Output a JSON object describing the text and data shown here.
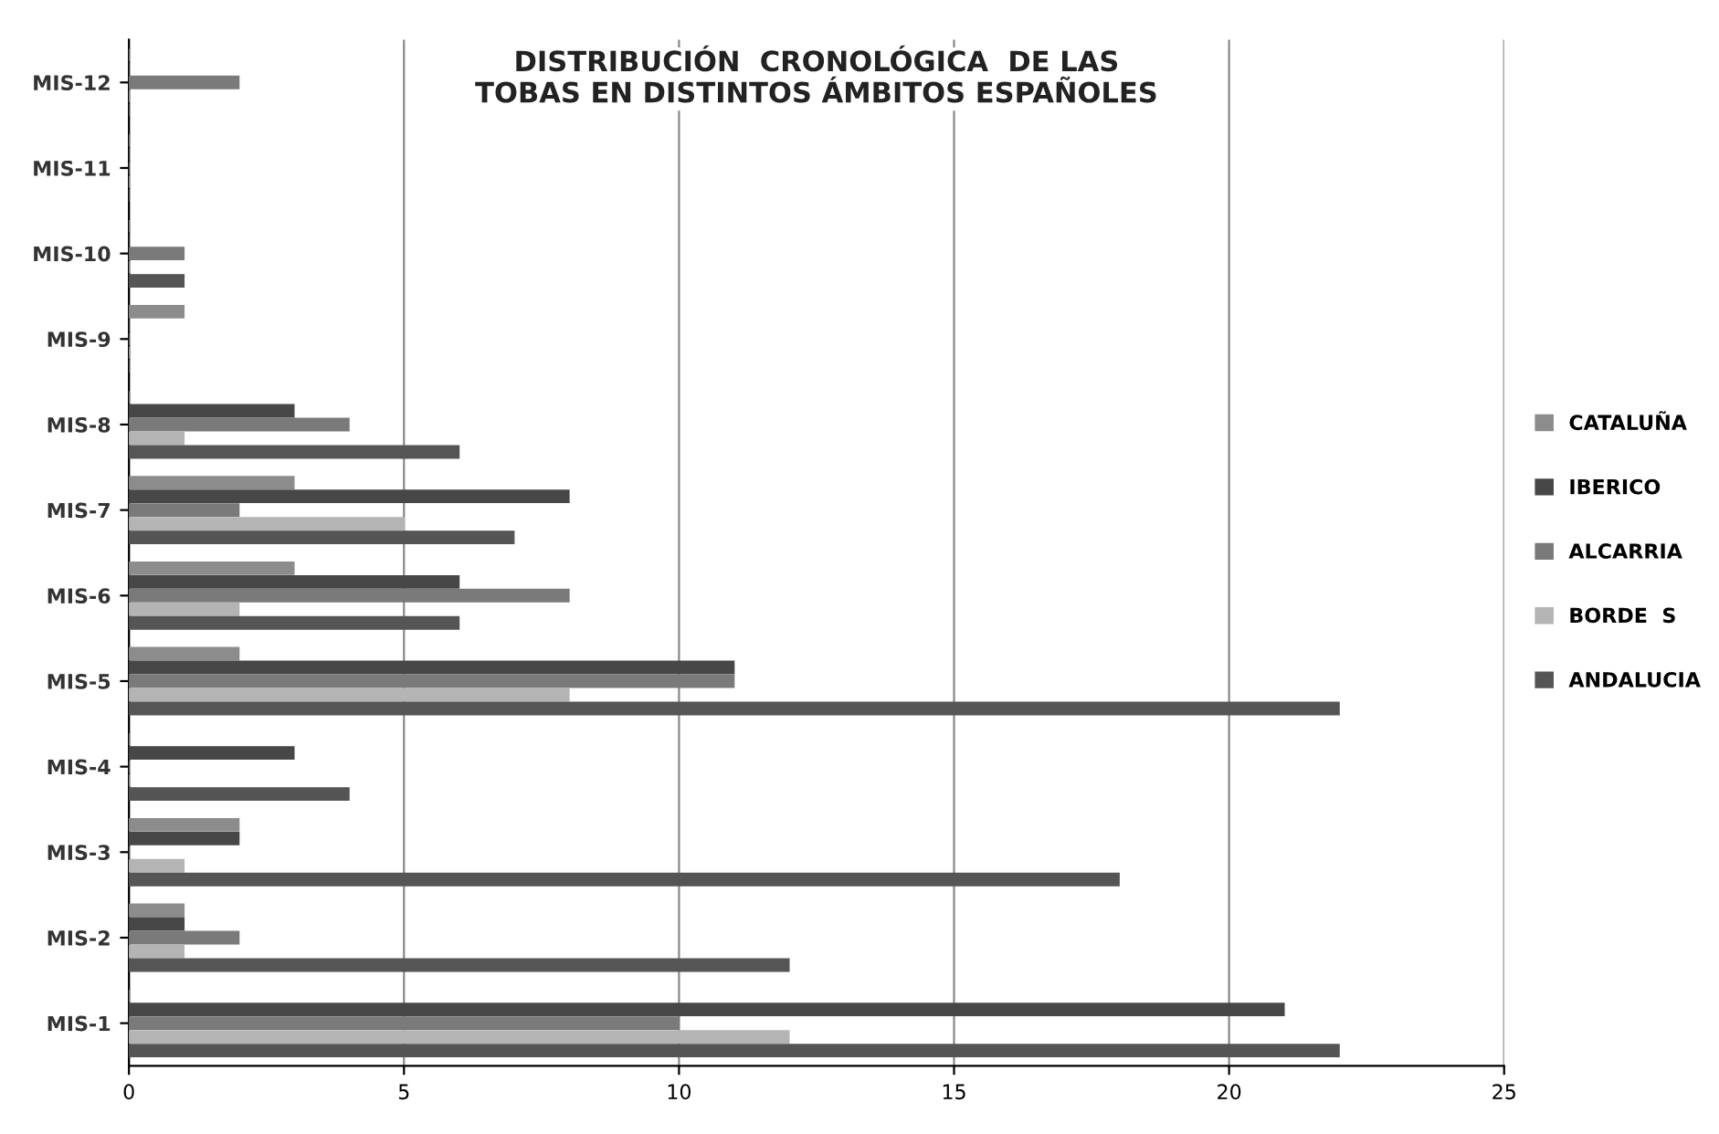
{
  "chart_data": {
    "type": "bar",
    "orientation": "horizontal",
    "title": "DISTRIBUCIÓN  CRONOLÓGICA  DE LAS\nTOBAS EN DISTINTOS ÁMBITOS ESPAÑOLES",
    "categories": [
      "MIS-12",
      "MIS-11",
      "MIS-10",
      "MIS-9",
      "MIS-8",
      "MIS-7",
      "MIS-6",
      "MIS-5",
      "MIS-4",
      "MIS-3",
      "MIS-2",
      "MIS-1"
    ],
    "series": [
      {
        "name": "CATALUÑA",
        "color": "#8c8c8c",
        "values": [
          0,
          0,
          0,
          1,
          0,
          3,
          3,
          2,
          0,
          2,
          1,
          0
        ]
      },
      {
        "name": "IBERICO",
        "color": "#474747",
        "values": [
          0,
          0,
          0,
          0,
          3,
          8,
          6,
          11,
          3,
          2,
          1,
          21
        ]
      },
      {
        "name": "ALCARRIA",
        "color": "#7a7a7a",
        "values": [
          2,
          0,
          1,
          0,
          4,
          2,
          8,
          11,
          0,
          0,
          2,
          10
        ]
      },
      {
        "name": "BORDE  S",
        "color": "#b4b4b4",
        "values": [
          0,
          0,
          0,
          0,
          1,
          5,
          2,
          8,
          0,
          1,
          1,
          12
        ]
      },
      {
        "name": "ANDALUCIA",
        "color": "#555555",
        "values": [
          0,
          0,
          1,
          0,
          6,
          7,
          6,
          22,
          4,
          18,
          12,
          22
        ]
      }
    ],
    "xlim": [
      0,
      25
    ],
    "xticks": [
      0,
      5,
      10,
      15,
      20,
      25
    ],
    "grid": "x",
    "legend": "right"
  }
}
